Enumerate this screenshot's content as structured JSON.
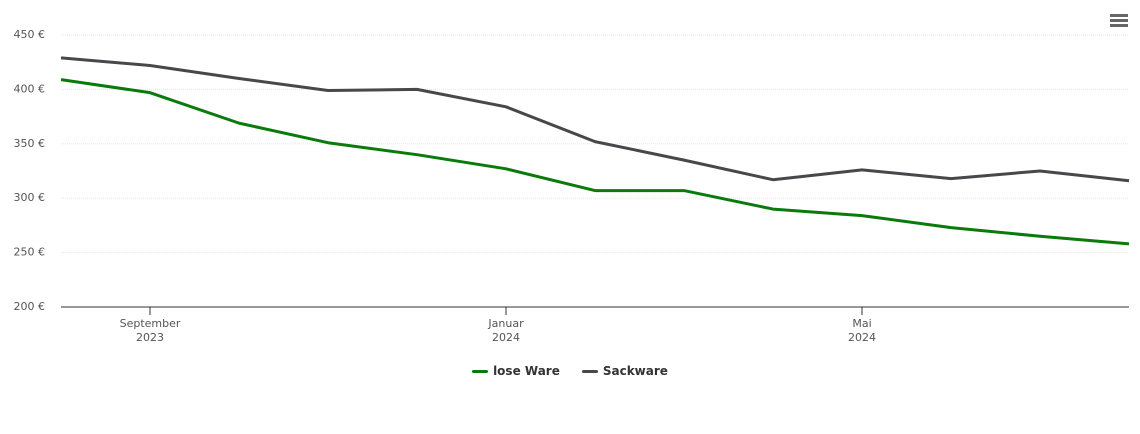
{
  "chart_data": {
    "type": "line",
    "x": [
      "2023-08",
      "2023-09",
      "2023-10",
      "2023-11",
      "2023-12",
      "2024-01",
      "2024-02",
      "2024-03",
      "2024-04",
      "2024-05",
      "2024-06",
      "2024-07",
      "2024-08"
    ],
    "series": [
      {
        "name": "lose Ware",
        "color": "#0a7a0a",
        "values": [
          409,
          397,
          369,
          351,
          340,
          327,
          307,
          307,
          290,
          284,
          273,
          265,
          258
        ]
      },
      {
        "name": "Sackware",
        "color": "#48484c",
        "values": [
          429,
          422,
          410,
          399,
          400,
          384,
          352,
          335,
          317,
          326,
          318,
          325,
          316
        ]
      }
    ],
    "xlim": [
      "2023-08",
      "2024-08"
    ],
    "xticks": [
      {
        "value": "2023-09",
        "label": "September 2023"
      },
      {
        "value": "2024-01",
        "label": "Januar 2024"
      },
      {
        "value": "2024-05",
        "label": "Mai 2024"
      }
    ],
    "ylim": [
      200,
      450
    ],
    "yticks": [
      {
        "value": 200,
        "label": "200 €"
      },
      {
        "value": 250,
        "label": "250 €"
      },
      {
        "value": 300,
        "label": "300 €"
      },
      {
        "value": 350,
        "label": "350 €"
      },
      {
        "value": 400,
        "label": "400 €"
      },
      {
        "value": 450,
        "label": "450 €"
      }
    ],
    "grid": true,
    "legend": "bottom"
  }
}
